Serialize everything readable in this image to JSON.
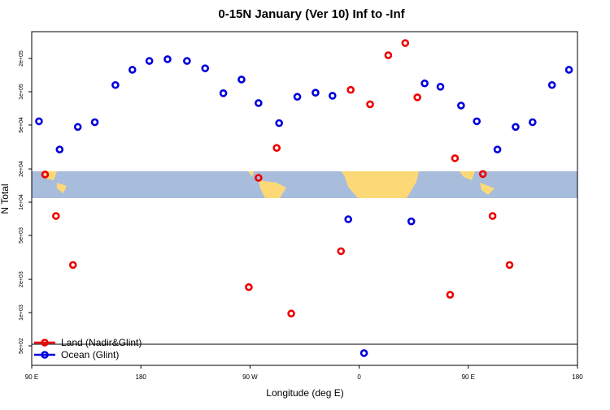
{
  "chart_data": {
    "type": "scatter",
    "title": "0-15N January (Ver 10)   Inf to -Inf",
    "x_label": "Longitude (deg E)",
    "y_label": "N Total",
    "log_y": true,
    "legend": "bottom left",
    "xlim": [
      90,
      540
    ],
    "xticks": [
      {
        "value": 90,
        "label": "90 E"
      },
      180,
      {
        "value": 270,
        "label": "90 W"
      },
      {
        "value": 360,
        "label": "0"
      },
      {
        "value": 450,
        "label": "90 E"
      },
      {
        "value": 540,
        "label": "180"
      }
    ],
    "ylim": [
      333,
      350000
    ],
    "yticks": [
      {
        "value": 500,
        "label": "5e+02"
      },
      {
        "value": 1000,
        "label": "1e+03"
      },
      {
        "value": 2000,
        "label": "2e+03"
      },
      {
        "value": 5000,
        "label": "5e+03"
      },
      {
        "value": 10000,
        "label": "1e+04"
      },
      {
        "value": 20000,
        "label": "2e+04"
      },
      {
        "value": 50000,
        "label": "5e+04"
      },
      {
        "value": 100000,
        "label": "1e+05"
      },
      {
        "value": 200000,
        "label": "2e+05"
      }
    ],
    "series": [
      {
        "name": "Land (Nadir&Glint)",
        "color": "#ee0000",
        "x": [
          101,
          110,
          124,
          269,
          277,
          292,
          304,
          345,
          353,
          369,
          384,
          398,
          408,
          435,
          439,
          462,
          470,
          484
        ],
        "values": [
          17800,
          7500,
          2700,
          1700,
          16600,
          31000,
          980,
          3600,
          104000,
          77000,
          214000,
          276000,
          89000,
          1450,
          25000,
          18000,
          7500,
          2700
        ]
      },
      {
        "name": "Ocean (Glint)",
        "color": "#0000dd",
        "x": [
          96,
          113,
          128,
          142,
          159,
          173,
          187,
          202,
          218,
          233,
          248,
          263,
          277,
          294,
          309,
          324,
          338,
          351,
          364,
          403,
          414,
          427,
          444,
          457,
          474,
          489,
          503,
          519,
          533
        ],
        "values": [
          54000,
          30000,
          48000,
          53000,
          115000,
          158000,
          190000,
          197000,
          190000,
          163000,
          97000,
          129000,
          79000,
          52000,
          90000,
          98000,
          92000,
          7000,
          430,
          6700,
          119000,
          111000,
          75000,
          54000,
          30000,
          48000,
          53000,
          115000,
          158000
        ]
      }
    ]
  }
}
